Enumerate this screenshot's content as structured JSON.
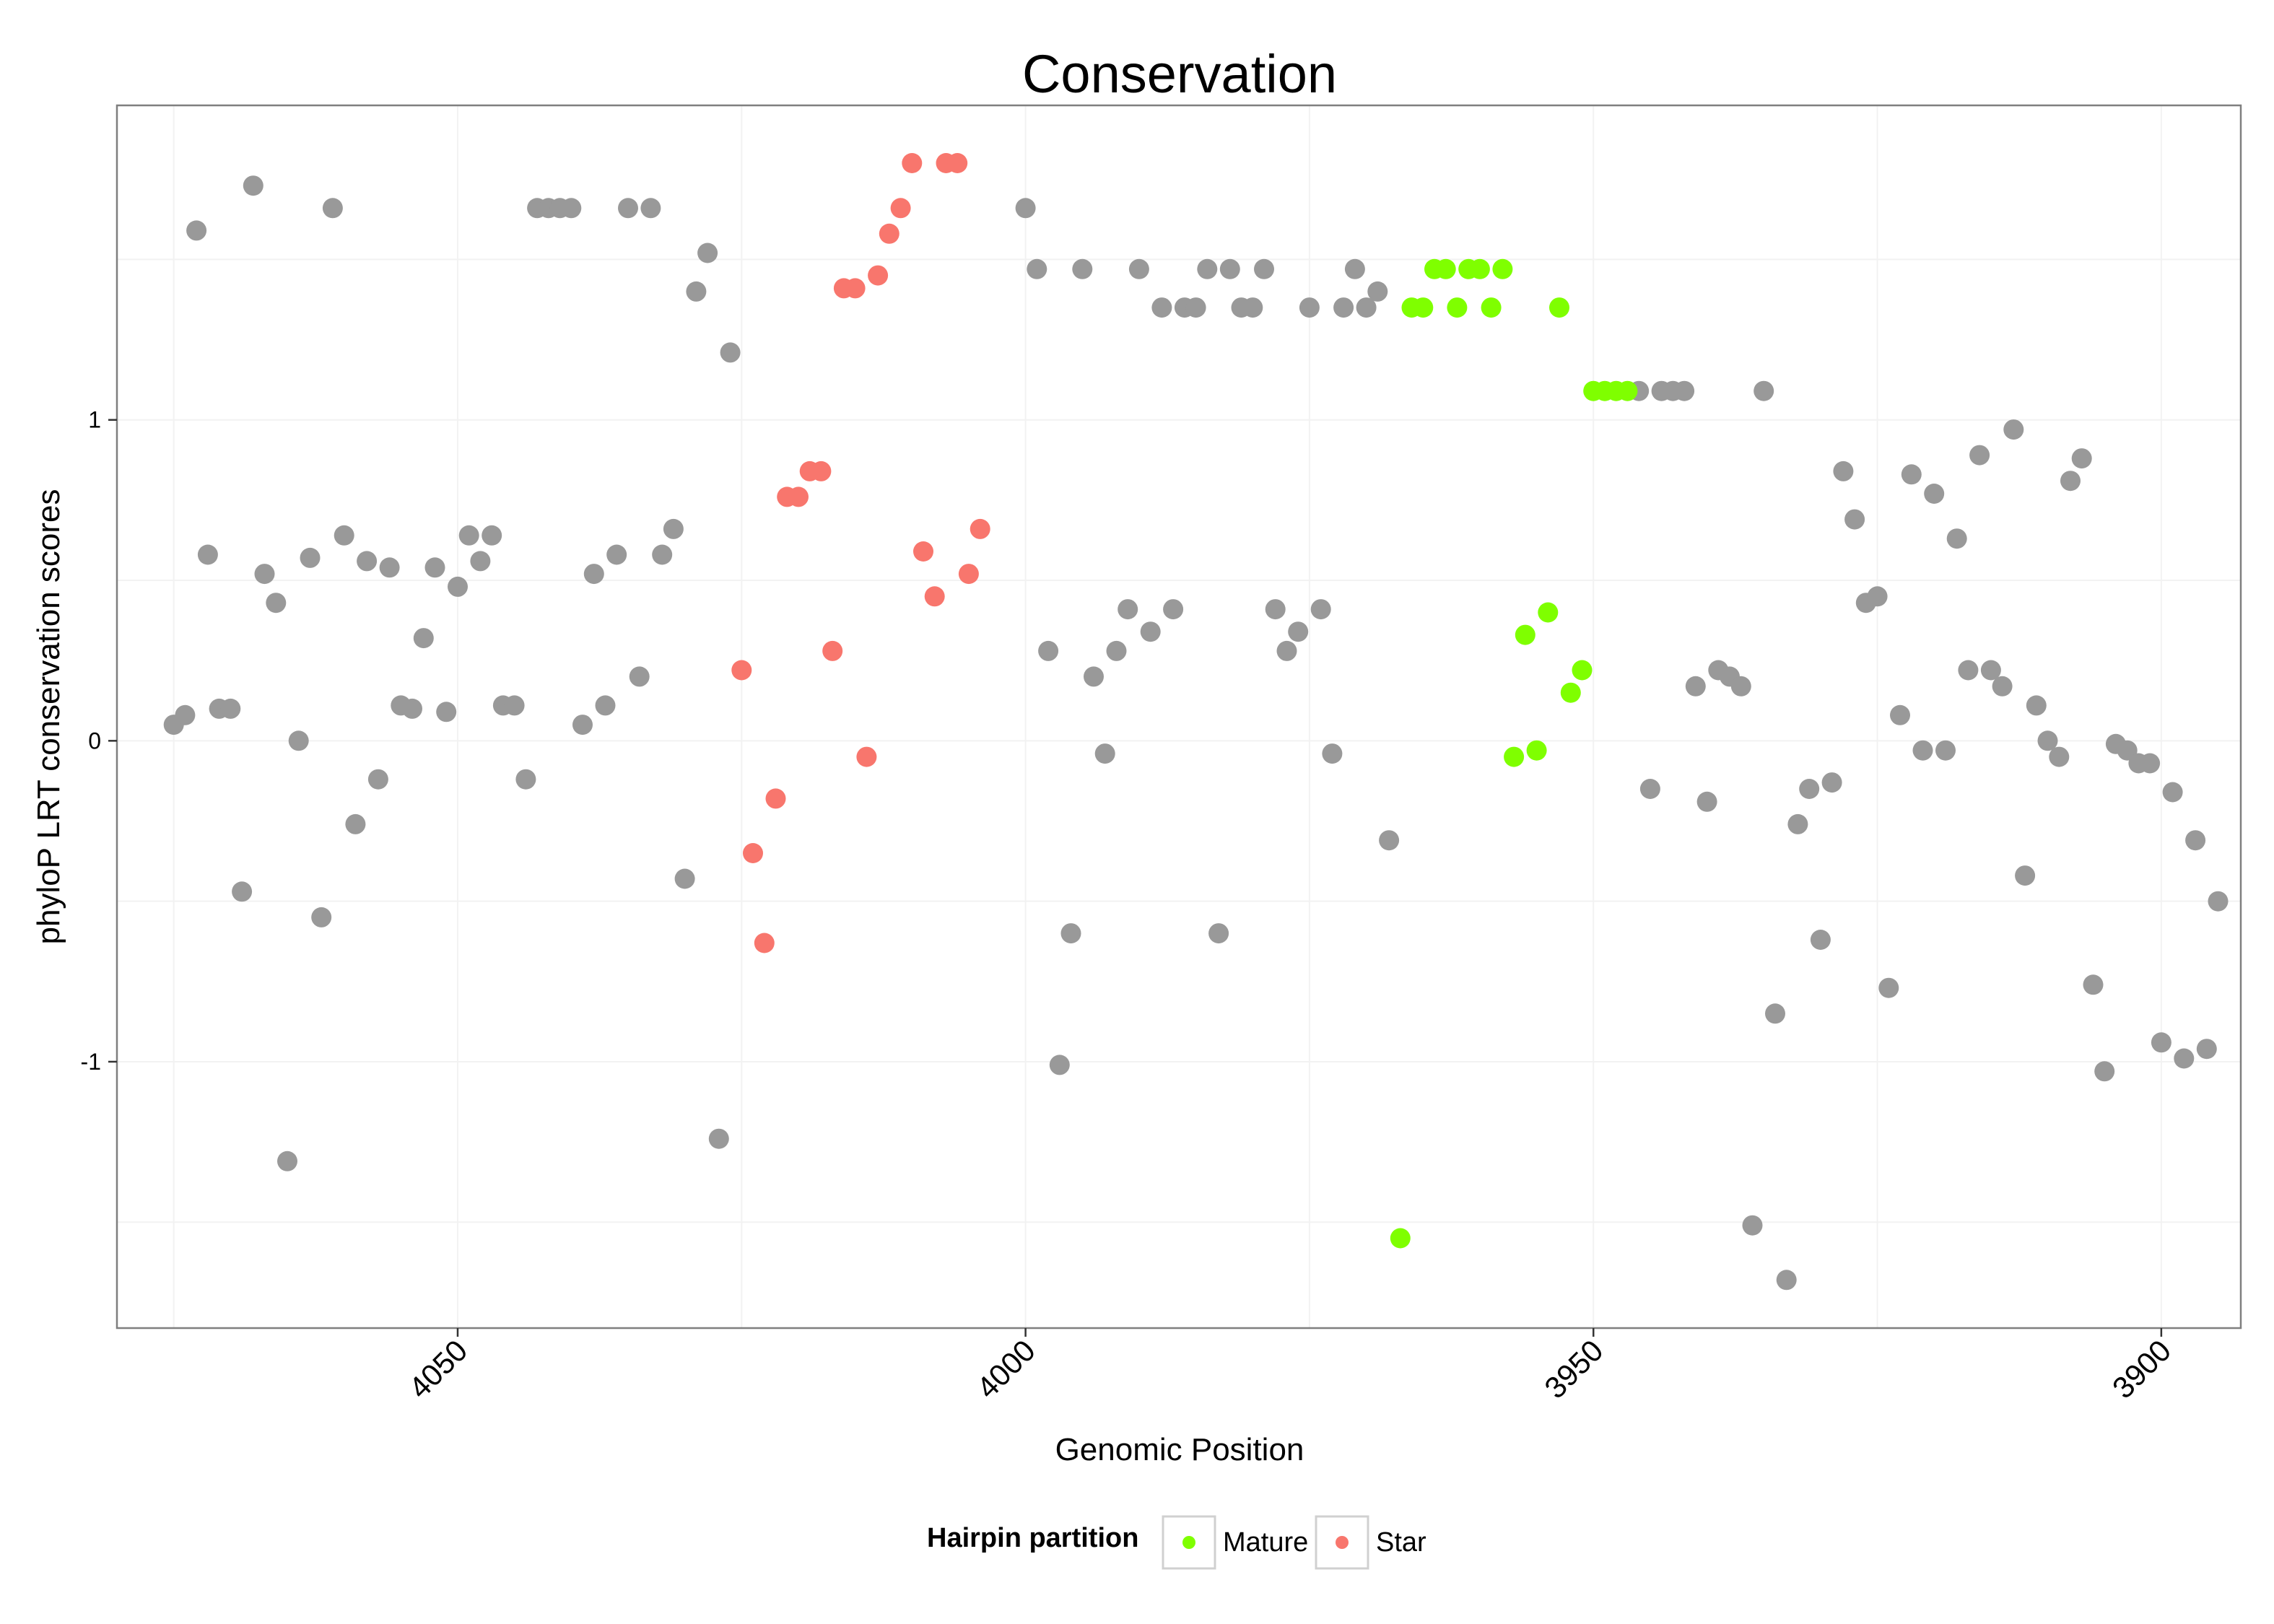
{
  "chart_data": {
    "type": "scatter",
    "title": "Conservation",
    "xlabel": "Genomic Position",
    "ylabel": "phyloP LRT conservation scores",
    "x_reversed": true,
    "xlim": [
      3893,
      4080
    ],
    "ylim": [
      -1.83,
      1.98
    ],
    "x_ticks": [
      4050,
      4000,
      3950,
      3900
    ],
    "y_ticks": [
      -1,
      0,
      1
    ],
    "y_tick_labels": [
      "-1",
      "0",
      "1"
    ],
    "grid": true,
    "legend": {
      "title": "Hairpin partition",
      "position": "bottom",
      "entries": [
        {
          "name": "Mature",
          "color": "#7FFF00"
        },
        {
          "name": "Star",
          "color": "#F8766D"
        }
      ]
    },
    "series": [
      {
        "group": "other",
        "color": "#999999",
        "points": [
          [
            4075,
            0.05
          ],
          [
            4074,
            0.08
          ],
          [
            4073,
            1.59
          ],
          [
            4072,
            0.58
          ],
          [
            4071,
            0.1
          ],
          [
            4070,
            0.1
          ],
          [
            4069,
            -0.47
          ],
          [
            4068,
            1.73
          ],
          [
            4067,
            0.52
          ],
          [
            4066,
            0.43
          ],
          [
            4065,
            -1.31
          ],
          [
            4064,
            0.0
          ],
          [
            4063,
            0.57
          ],
          [
            4062,
            -0.55
          ],
          [
            4061,
            1.66
          ],
          [
            4060,
            0.64
          ],
          [
            4059,
            -0.26
          ],
          [
            4058,
            0.56
          ],
          [
            4057,
            -0.12
          ],
          [
            4056,
            0.54
          ],
          [
            4055,
            0.11
          ],
          [
            4054,
            0.1
          ],
          [
            4053,
            0.32
          ],
          [
            4052,
            0.54
          ],
          [
            4051,
            0.09
          ],
          [
            4050,
            0.48
          ],
          [
            4049,
            0.64
          ],
          [
            4048,
            0.56
          ],
          [
            4047,
            0.64
          ],
          [
            4046,
            0.11
          ],
          [
            4045,
            0.11
          ],
          [
            4044,
            -0.12
          ],
          [
            4043,
            1.66
          ],
          [
            4042,
            1.66
          ],
          [
            4041,
            1.66
          ],
          [
            4040,
            1.66
          ],
          [
            4039,
            0.05
          ],
          [
            4038,
            0.52
          ],
          [
            4037,
            0.11
          ],
          [
            4036,
            0.58
          ],
          [
            4035,
            1.66
          ],
          [
            4034,
            0.2
          ],
          [
            4033,
            1.66
          ],
          [
            4032,
            0.58
          ],
          [
            4031,
            0.66
          ],
          [
            4030,
            -0.43
          ],
          [
            4029,
            1.4
          ],
          [
            4028,
            1.52
          ],
          [
            4027,
            -1.24
          ],
          [
            4026,
            1.21
          ],
          [
            4000,
            1.66
          ],
          [
            3999,
            1.47
          ],
          [
            3998,
            0.28
          ],
          [
            3997,
            -1.01
          ],
          [
            3996,
            -0.6
          ],
          [
            3995,
            1.47
          ],
          [
            3994,
            0.2
          ],
          [
            3993,
            -0.04
          ],
          [
            3992,
            0.28
          ],
          [
            3991,
            0.41
          ],
          [
            3990,
            1.47
          ],
          [
            3989,
            0.34
          ],
          [
            3988,
            1.35
          ],
          [
            3987,
            0.41
          ],
          [
            3986,
            1.35
          ],
          [
            3985,
            1.35
          ],
          [
            3984,
            1.47
          ],
          [
            3983,
            -0.6
          ],
          [
            3982,
            1.47
          ],
          [
            3981,
            1.35
          ],
          [
            3980,
            1.35
          ],
          [
            3979,
            1.47
          ],
          [
            3978,
            0.41
          ],
          [
            3977,
            0.28
          ],
          [
            3976,
            0.34
          ],
          [
            3975,
            1.35
          ],
          [
            3974,
            0.41
          ],
          [
            3973,
            -0.04
          ],
          [
            3972,
            1.35
          ],
          [
            3971,
            1.47
          ],
          [
            3970,
            1.35
          ],
          [
            3969,
            1.4
          ],
          [
            3968,
            -0.31
          ],
          [
            3946,
            1.09
          ],
          [
            3945,
            -0.15
          ],
          [
            3944,
            1.09
          ],
          [
            3943,
            1.09
          ],
          [
            3942,
            1.09
          ],
          [
            3941,
            0.17
          ],
          [
            3940,
            -0.19
          ],
          [
            3939,
            0.22
          ],
          [
            3938,
            0.2
          ],
          [
            3937,
            0.17
          ],
          [
            3936,
            -1.51
          ],
          [
            3935,
            1.09
          ],
          [
            3934,
            -0.85
          ],
          [
            3933,
            -1.68
          ],
          [
            3932,
            -0.26
          ],
          [
            3931,
            -0.15
          ],
          [
            3930,
            -0.62
          ],
          [
            3929,
            -0.13
          ],
          [
            3928,
            0.84
          ],
          [
            3927,
            0.69
          ],
          [
            3926,
            0.43
          ],
          [
            3925,
            0.45
          ],
          [
            3924,
            -0.77
          ],
          [
            3923,
            0.08
          ],
          [
            3922,
            0.83
          ],
          [
            3921,
            -0.03
          ],
          [
            3920,
            0.77
          ],
          [
            3919,
            -0.03
          ],
          [
            3918,
            0.63
          ],
          [
            3917,
            0.22
          ],
          [
            3916,
            0.89
          ],
          [
            3915,
            0.22
          ],
          [
            3914,
            0.17
          ],
          [
            3913,
            0.97
          ],
          [
            3912,
            -0.42
          ],
          [
            3911,
            0.11
          ],
          [
            3910,
            0.0
          ],
          [
            3909,
            -0.05
          ],
          [
            3908,
            0.81
          ],
          [
            3907,
            0.88
          ],
          [
            3906,
            -0.76
          ],
          [
            3905,
            -1.03
          ],
          [
            3904,
            -0.01
          ],
          [
            3903,
            -0.03
          ],
          [
            3902,
            -0.07
          ],
          [
            3901,
            -0.07
          ],
          [
            3900,
            -0.94
          ],
          [
            3899,
            -0.16
          ],
          [
            3898,
            -0.99
          ],
          [
            3897,
            -0.31
          ],
          [
            3896,
            -0.96
          ],
          [
            3895,
            -0.5
          ]
        ]
      },
      {
        "group": "Star",
        "color": "#F8766D",
        "points": [
          [
            4025,
            0.22
          ],
          [
            4024,
            -0.35
          ],
          [
            4023,
            -0.63
          ],
          [
            4022,
            -0.18
          ],
          [
            4021,
            0.76
          ],
          [
            4020,
            0.76
          ],
          [
            4019,
            0.84
          ],
          [
            4018,
            0.84
          ],
          [
            4017,
            0.28
          ],
          [
            4016,
            1.41
          ],
          [
            4015,
            1.41
          ],
          [
            4014,
            -0.05
          ],
          [
            4013,
            1.45
          ],
          [
            4012,
            1.58
          ],
          [
            4011,
            1.66
          ],
          [
            4010,
            1.8
          ],
          [
            4009,
            0.59
          ],
          [
            4008,
            0.45
          ],
          [
            4007,
            1.8
          ],
          [
            4006,
            1.8
          ],
          [
            4005,
            0.52
          ],
          [
            4004,
            0.66
          ]
        ]
      },
      {
        "group": "Mature",
        "color": "#7FFF00",
        "points": [
          [
            3967,
            -1.55
          ],
          [
            3966,
            1.35
          ],
          [
            3965,
            1.35
          ],
          [
            3964,
            1.47
          ],
          [
            3963,
            1.47
          ],
          [
            3962,
            1.35
          ],
          [
            3961,
            1.47
          ],
          [
            3960,
            1.47
          ],
          [
            3959,
            1.35
          ],
          [
            3958,
            1.47
          ],
          [
            3957,
            -0.05
          ],
          [
            3956,
            0.33
          ],
          [
            3955,
            -0.03
          ],
          [
            3954,
            0.4
          ],
          [
            3953,
            1.35
          ],
          [
            3952,
            0.15
          ],
          [
            3951,
            0.22
          ],
          [
            3950,
            1.09
          ],
          [
            3949,
            1.09
          ],
          [
            3948,
            1.09
          ],
          [
            3947,
            1.09
          ]
        ]
      }
    ]
  }
}
